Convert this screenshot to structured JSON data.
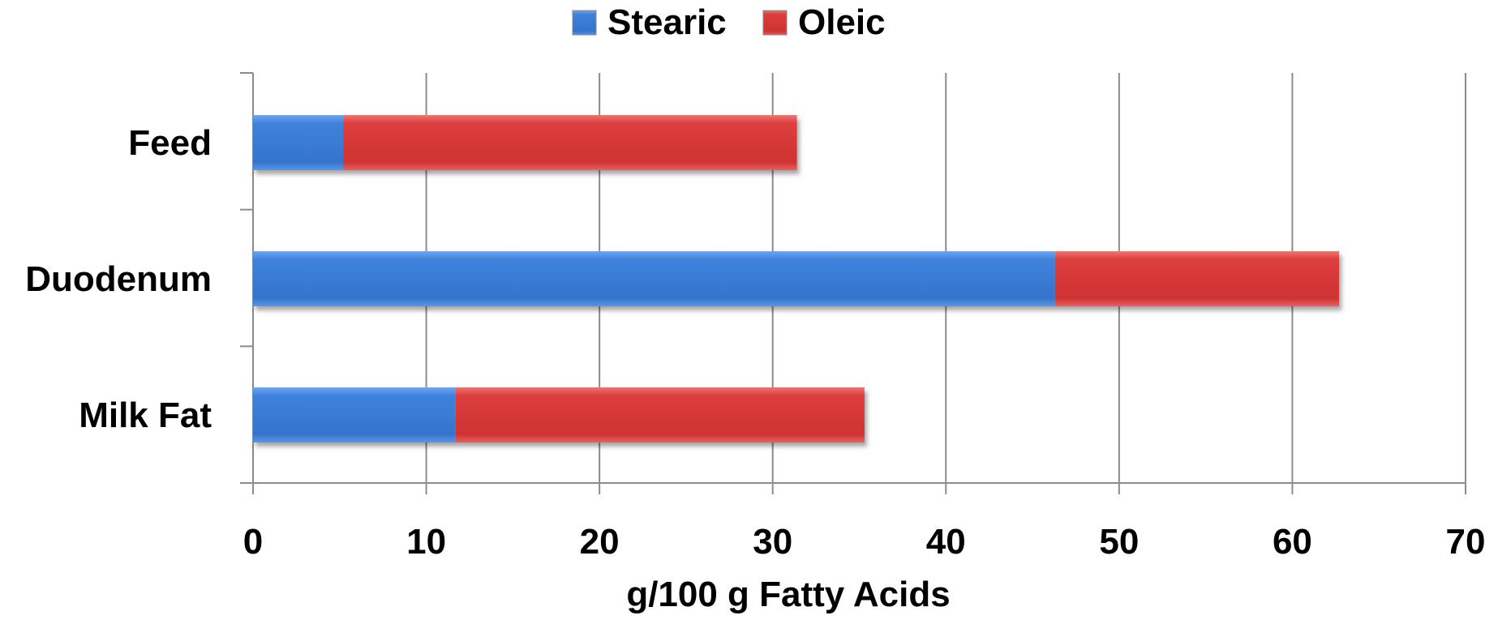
{
  "chart_data": {
    "type": "bar",
    "orientation": "horizontal",
    "stacked": true,
    "categories": [
      "Feed",
      "Duodenum",
      "Milk Fat"
    ],
    "series": [
      {
        "name": "Stearic",
        "values": [
          5.2,
          46.3,
          11.7
        ],
        "color": "#3a7bd5"
      },
      {
        "name": "Oleic",
        "values": [
          26.2,
          16.4,
          23.6
        ],
        "color": "#d93a3a"
      }
    ],
    "xlabel": "g/100 g Fatty Acids",
    "ylabel": "",
    "xlim": [
      0,
      70
    ],
    "xticks": [
      0,
      10,
      20,
      30,
      40,
      50,
      60,
      70
    ],
    "grid": true,
    "legend_position": "top"
  }
}
